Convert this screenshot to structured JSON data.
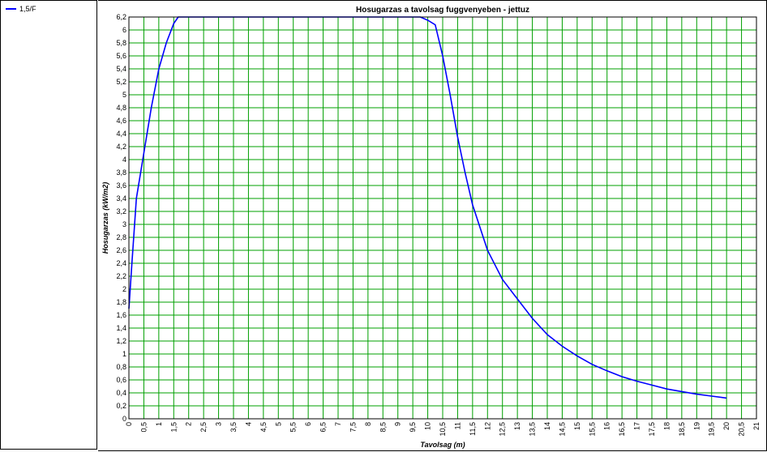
{
  "chart_data": {
    "type": "line",
    "title": "Hosugarzas a tavolsag fuggvenyeben - jettuz",
    "xlabel": "Tavolsag (m)",
    "ylabel": "Hosugarzas (kW/m2)",
    "xlim": [
      0,
      21
    ],
    "ylim": [
      0,
      6.2
    ],
    "grid": true,
    "legend_position": "top-left",
    "x_ticks": [
      "0",
      "0,5",
      "1",
      "1,5",
      "2",
      "2,5",
      "3",
      "3,5",
      "4",
      "4,5",
      "5",
      "5,5",
      "6",
      "6,5",
      "7",
      "7,5",
      "8",
      "8,5",
      "9",
      "9,5",
      "10",
      "10,5",
      "11",
      "11,5",
      "12",
      "12,5",
      "13",
      "13,5",
      "14",
      "14,5",
      "15",
      "15,5",
      "16",
      "16,5",
      "17",
      "17,5",
      "18",
      "18,5",
      "19",
      "19,5",
      "20",
      "20,5",
      "21"
    ],
    "y_ticks": [
      "0",
      "0,2",
      "0,4",
      "0,6",
      "0,8",
      "1",
      "1,2",
      "1,4",
      "1,6",
      "1,8",
      "2",
      "2,2",
      "2,4",
      "2,6",
      "2,8",
      "3",
      "3,2",
      "3,4",
      "3,6",
      "3,8",
      "4",
      "4,2",
      "4,4",
      "4,6",
      "4,8",
      "5",
      "5,2",
      "5,4",
      "5,6",
      "5,8",
      "6",
      "6,2"
    ],
    "series": [
      {
        "name": "1,5/F",
        "color": "#0000ff",
        "x": [
          0,
          0.1,
          0.25,
          0.5,
          0.75,
          1.0,
          1.25,
          1.5,
          1.65,
          2,
          3,
          4,
          5,
          6,
          7,
          8,
          9,
          9.75,
          10.0,
          10.25,
          10.5,
          10.75,
          11.0,
          11.25,
          11.5,
          11.75,
          12.0,
          12.5,
          13.0,
          13.5,
          14.0,
          14.5,
          15.0,
          15.5,
          16.0,
          16.5,
          17.0,
          17.5,
          18.0,
          18.5,
          19.0,
          19.5,
          20.0
        ],
        "y": [
          1.7,
          2.4,
          3.4,
          4.1,
          4.8,
          5.4,
          5.8,
          6.1,
          6.2,
          6.2,
          6.2,
          6.2,
          6.2,
          6.2,
          6.2,
          6.2,
          6.2,
          6.2,
          6.15,
          6.08,
          5.6,
          5.0,
          4.35,
          3.8,
          3.3,
          2.95,
          2.6,
          2.15,
          1.85,
          1.55,
          1.3,
          1.12,
          0.97,
          0.84,
          0.74,
          0.65,
          0.58,
          0.52,
          0.46,
          0.42,
          0.38,
          0.35,
          0.32
        ]
      }
    ]
  }
}
